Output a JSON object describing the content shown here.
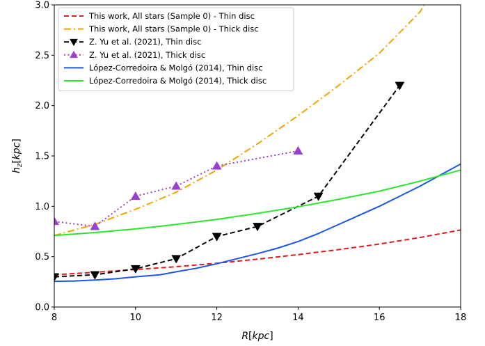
{
  "chart_data": {
    "type": "line",
    "xlabel": "R[kpc]",
    "ylabel": "h_z[kpc]",
    "xlim": [
      8,
      18
    ],
    "ylim": [
      0.0,
      3.0
    ],
    "xticks": [
      8,
      10,
      12,
      14,
      16,
      18
    ],
    "xtick_labels": [
      "8",
      "10",
      "12",
      "14",
      "16",
      "18"
    ],
    "yticks": [
      0.0,
      0.5,
      1.0,
      1.5,
      2.0,
      2.5,
      3.0
    ],
    "ytick_labels": [
      "0.0",
      "0.5",
      "1.0",
      "1.5",
      "2.0",
      "2.5",
      "3.0"
    ],
    "grid": false,
    "legend_position": "top-left",
    "series": [
      {
        "name": "This work, All stars (Sample 0) - Thin disc",
        "color": "#e41a1c",
        "style": "dashed",
        "marker": "none",
        "x": [
          8,
          9,
          10,
          11,
          12,
          13,
          14,
          15,
          16,
          17,
          18
        ],
        "y": [
          0.32,
          0.345,
          0.372,
          0.4,
          0.435,
          0.475,
          0.52,
          0.57,
          0.625,
          0.69,
          0.765
        ]
      },
      {
        "name": "This work, All stars (Sample 0) - Thick disc",
        "color": "#f5a300",
        "style": "dashdot",
        "marker": "none",
        "x": [
          8,
          9,
          10,
          11,
          12,
          13,
          14,
          15,
          16,
          17,
          17.1
        ],
        "y": [
          0.71,
          0.82,
          0.97,
          1.14,
          1.36,
          1.62,
          1.9,
          2.2,
          2.52,
          2.93,
          3.0
        ]
      },
      {
        "name": "Z. Yu et al. (2021), Thin disc",
        "color": "#000000",
        "style": "dashed",
        "marker": "triangle-down",
        "x": [
          8,
          9,
          10,
          11,
          12,
          13,
          14.5,
          16.5
        ],
        "y": [
          0.3,
          0.32,
          0.38,
          0.48,
          0.7,
          0.8,
          1.1,
          2.2
        ]
      },
      {
        "name": "Z. Yu et al. (2021), Thick disc",
        "color": "#9b3fcf",
        "style": "dotted",
        "marker": "triangle-up",
        "x": [
          8,
          9,
          10,
          11,
          12,
          14
        ],
        "y": [
          0.85,
          0.8,
          1.1,
          1.2,
          1.4,
          1.55
        ]
      },
      {
        "name": "López-Corredoira & Molgó (2014), Thin disc",
        "color": "#1a57e8",
        "style": "solid",
        "marker": "none",
        "x": [
          8,
          8.5,
          9,
          9.5,
          10,
          10.6,
          11,
          11.5,
          12,
          12.5,
          13,
          13.5,
          14,
          14.5,
          15,
          15.5,
          16,
          16.5,
          17,
          17.5,
          18
        ],
        "y": [
          0.255,
          0.258,
          0.268,
          0.28,
          0.3,
          0.32,
          0.35,
          0.385,
          0.43,
          0.48,
          0.53,
          0.585,
          0.65,
          0.73,
          0.82,
          0.91,
          1.0,
          1.1,
          1.2,
          1.31,
          1.42
        ]
      },
      {
        "name": "López-Corredoira & Molgó (2014), Thick disc",
        "color": "#2de52d",
        "style": "solid",
        "marker": "none",
        "x": [
          8,
          9,
          10,
          11,
          12,
          13,
          14,
          15,
          16,
          17,
          18
        ],
        "y": [
          0.71,
          0.74,
          0.775,
          0.82,
          0.87,
          0.93,
          0.995,
          1.07,
          1.15,
          1.25,
          1.36
        ]
      }
    ]
  }
}
